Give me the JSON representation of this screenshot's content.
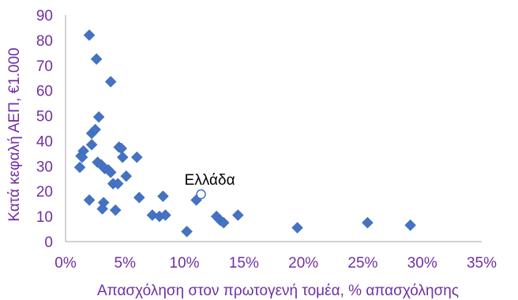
{
  "chart_data": {
    "type": "scatter",
    "title": "",
    "xlabel": "Απασχόληση στον πρωτογενή τομέα,  % απασχόλησης",
    "ylabel": "Κατά κεφαλή ΑΕΠ, €1.000",
    "xlim": [
      0,
      35
    ],
    "ylim": [
      0,
      90
    ],
    "x_ticks": [
      "0%",
      "5%",
      "10%",
      "15%",
      "20%",
      "25%",
      "30%",
      "35%"
    ],
    "y_ticks": [
      "0",
      "10",
      "20",
      "30",
      "40",
      "50",
      "60",
      "70",
      "80",
      "90"
    ],
    "grid": false,
    "legend": "none",
    "marker_color": "#4472c4",
    "axis_text_color": "#7030a0",
    "series": [
      {
        "marker": "diamond",
        "points": [
          [
            2.0,
            82
          ],
          [
            2.6,
            72.5
          ],
          [
            3.8,
            63.5
          ],
          [
            2.8,
            49.5
          ],
          [
            2.2,
            43
          ],
          [
            2.5,
            44.5
          ],
          [
            2.2,
            38.5
          ],
          [
            4.5,
            37.5
          ],
          [
            4.7,
            37
          ],
          [
            1.5,
            36
          ],
          [
            1.3,
            34
          ],
          [
            1.4,
            33.5
          ],
          [
            4.8,
            33.5
          ],
          [
            6.0,
            33.5
          ],
          [
            1.2,
            29.5
          ],
          [
            2.7,
            31.5
          ],
          [
            3.0,
            30.5
          ],
          [
            3.3,
            29
          ],
          [
            3.6,
            28.5
          ],
          [
            3.8,
            27.5
          ],
          [
            5.1,
            26
          ],
          [
            4.0,
            23
          ],
          [
            4.4,
            23
          ],
          [
            2.0,
            16.5
          ],
          [
            3.2,
            15.5
          ],
          [
            3.1,
            13
          ],
          [
            4.2,
            12.5
          ],
          [
            6.2,
            17.5
          ],
          [
            8.2,
            18
          ],
          [
            11.0,
            16.5
          ],
          [
            7.3,
            10.5
          ],
          [
            7.9,
            10
          ],
          [
            8.4,
            10.5
          ],
          [
            10.2,
            4
          ],
          [
            12.7,
            10
          ],
          [
            13.0,
            8.5
          ],
          [
            13.3,
            7.5
          ],
          [
            14.5,
            10.5
          ],
          [
            19.5,
            5.5
          ],
          [
            25.4,
            7.5
          ],
          [
            29.0,
            6.5
          ]
        ]
      },
      {
        "name": "Ελλάδα",
        "marker": "circle-open",
        "points": [
          [
            11.4,
            18.8
          ]
        ]
      }
    ],
    "annotations": [
      {
        "text": "Ελλάδα",
        "x": 11.4,
        "y": 18.8
      }
    ]
  }
}
